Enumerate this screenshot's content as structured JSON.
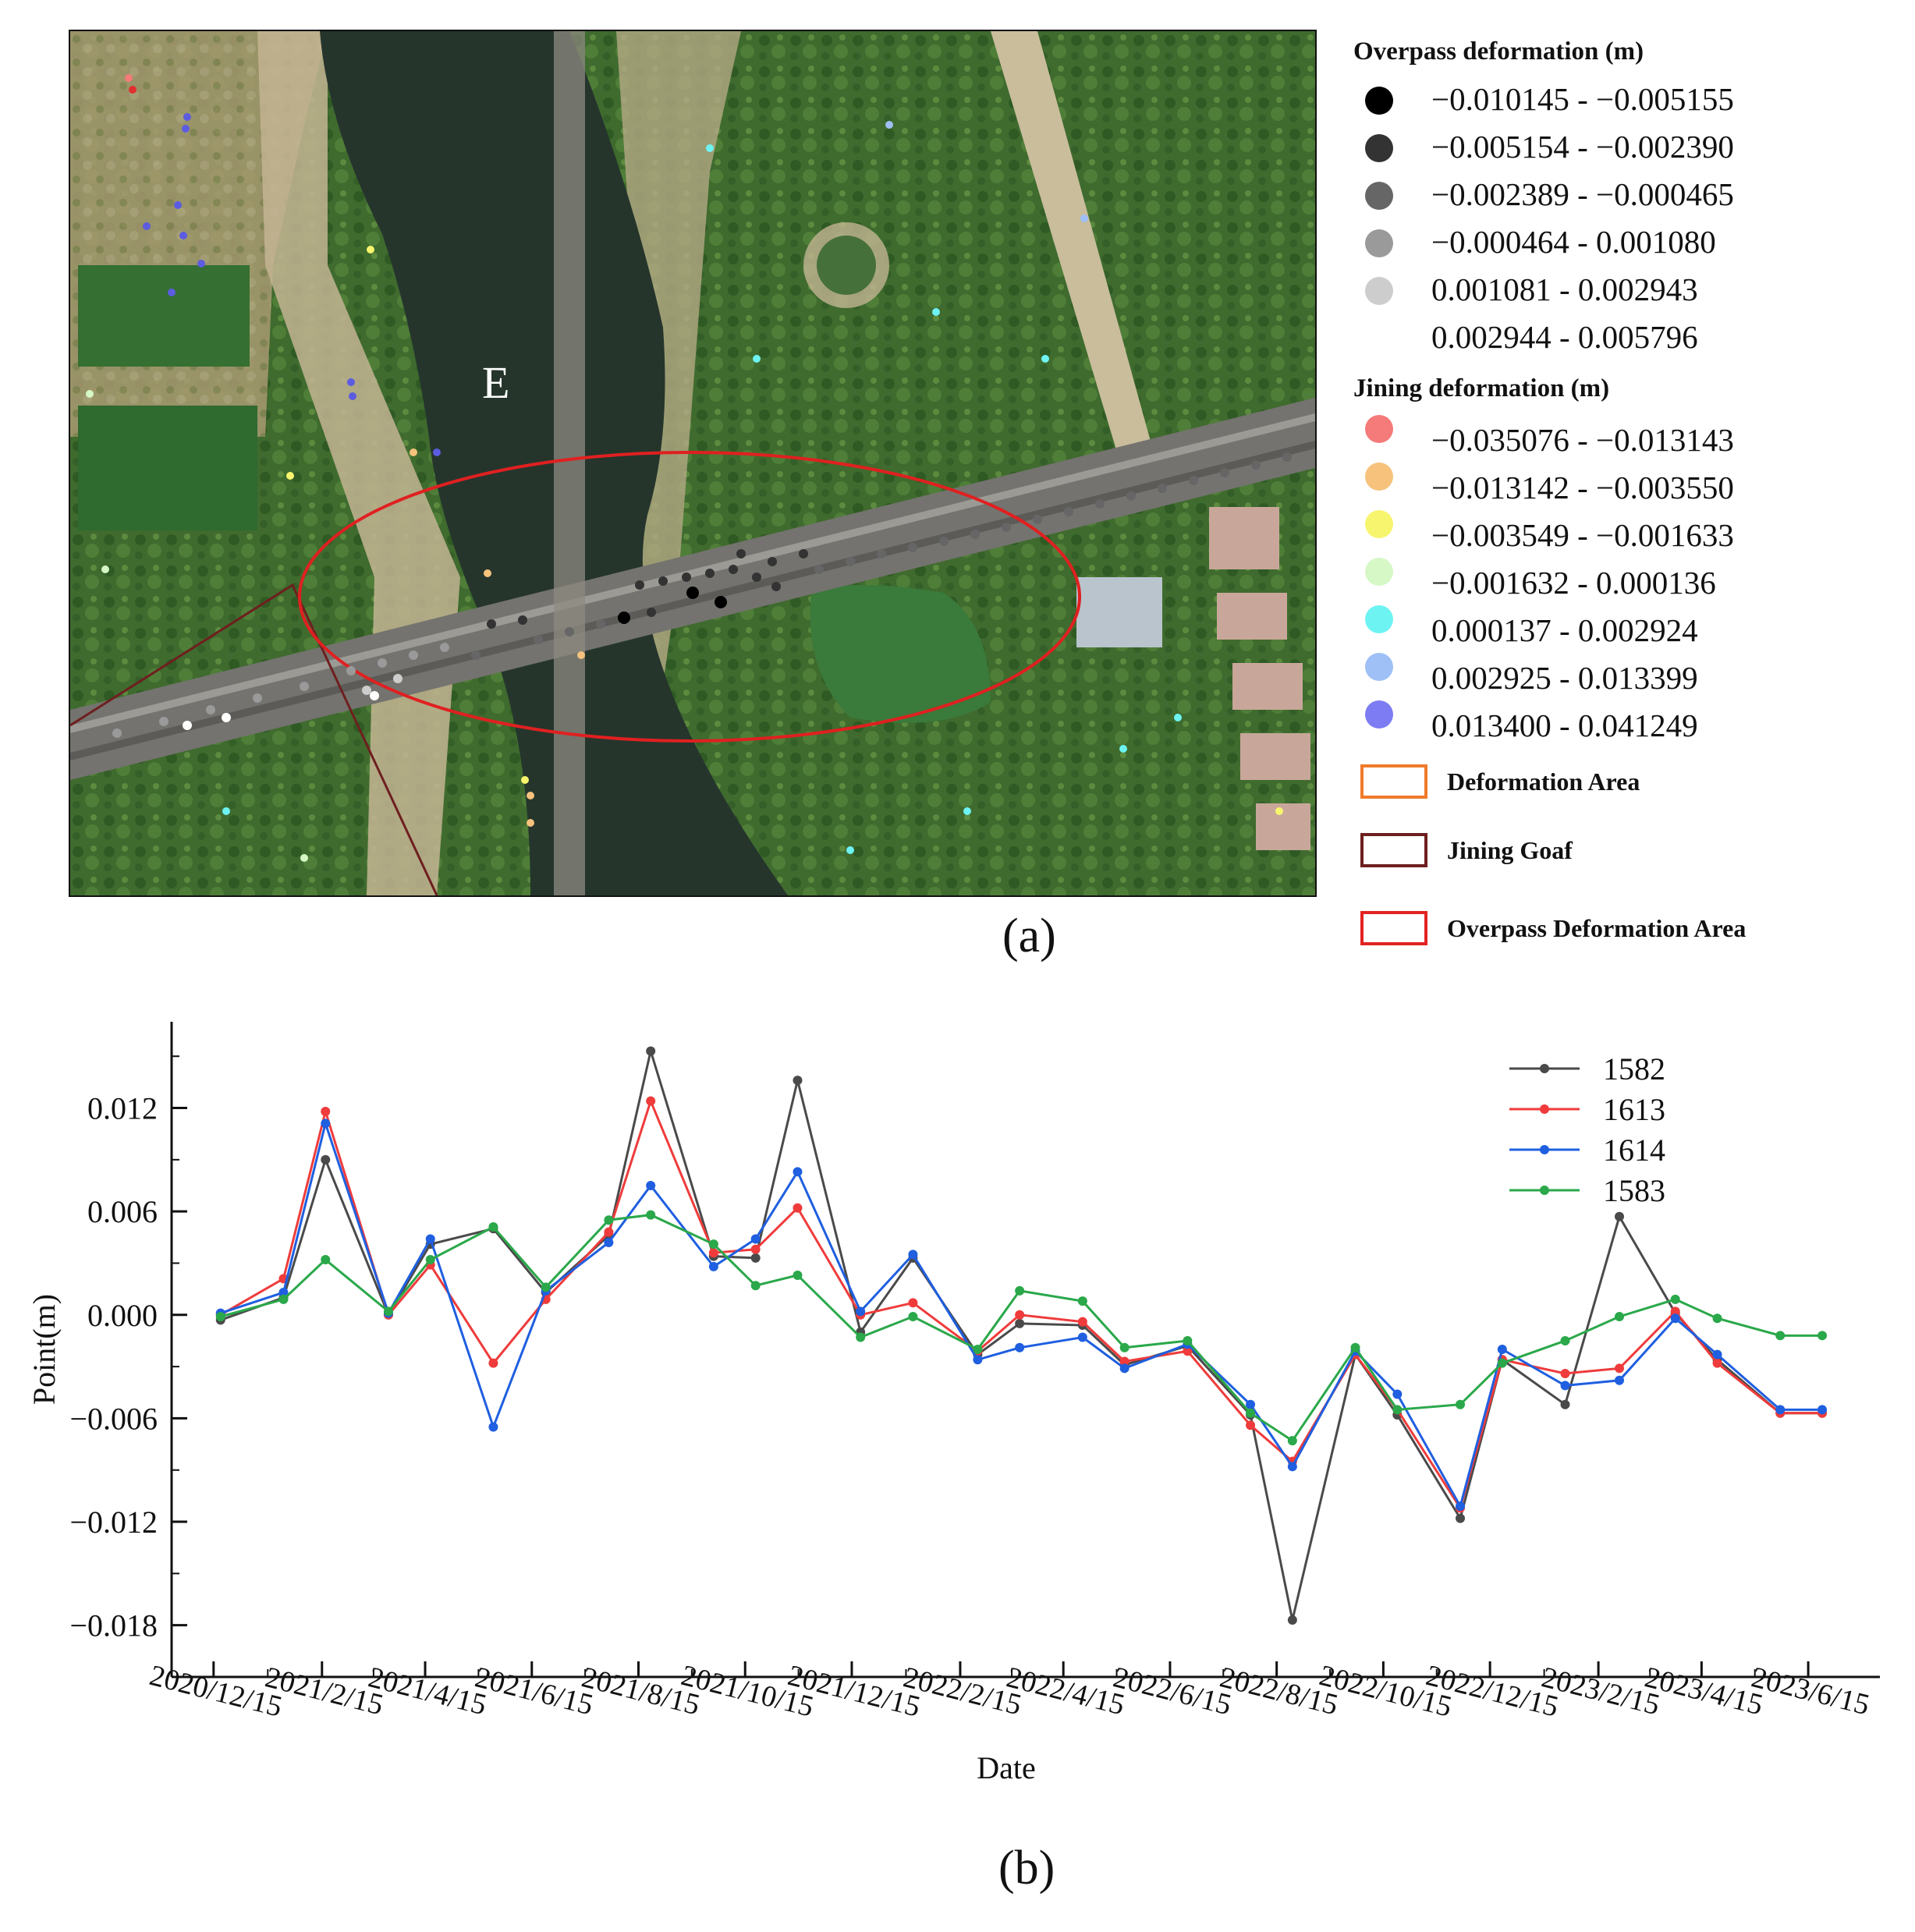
{
  "panel_a": {
    "caption": "(a)",
    "map_label": "E",
    "legend": {
      "overpass_title": "Overpass deformation (m)",
      "overpass_classes": [
        {
          "label": "−0.010145 - −0.005155",
          "color": "#000000"
        },
        {
          "label": "−0.005154 - −0.002390",
          "color": "#333333"
        },
        {
          "label": "−0.002389 - −0.000465",
          "color": "#666666"
        },
        {
          "label": "−0.000464 - 0.001080",
          "color": "#9a9a9a"
        },
        {
          "label": "0.001081 - 0.002943",
          "color": "#cdcdcd"
        },
        {
          "label": "0.002944 - 0.005796",
          "color": "#ffffff"
        }
      ],
      "jining_title": "Jining deformation (m)",
      "jining_classes": [
        {
          "label": "−0.035076 - −0.013143",
          "color": "#f57a7a"
        },
        {
          "label": "−0.013142 - −0.003550",
          "color": "#f6c27c"
        },
        {
          "label": "−0.003549 - −0.001633",
          "color": "#f7f56e"
        },
        {
          "label": "−0.001632 - 0.000136",
          "color": "#d6f7c6"
        },
        {
          "label": "0.000137 - 0.002924",
          "color": "#6ef3f3"
        },
        {
          "label": "0.002925 - 0.013399",
          "color": "#9ec0f6"
        },
        {
          "label": "0.013400 - 0.041249",
          "color": "#7d7cf3"
        }
      ],
      "areas": [
        {
          "label": "Deformation Area",
          "color": "#f07a2a"
        },
        {
          "label": "Jining Goaf",
          "color": "#6e1f1f"
        },
        {
          "label": "Overpass Deformation Area",
          "color": "#e32222"
        }
      ]
    }
  },
  "panel_b": {
    "caption": "(b)"
  },
  "chart_data": {
    "type": "line",
    "xlabel": "Date",
    "ylabel": "Point(m)",
    "ylim": [
      -0.021,
      0.017
    ],
    "yticks": [
      -0.018,
      -0.012,
      -0.006,
      0.0,
      0.006,
      0.012
    ],
    "ytick_labels": [
      "−0.018",
      "−0.012",
      "−0.006",
      "0.000",
      "0.006",
      "0.012"
    ],
    "xlim": [
      "2020-11-21",
      "2023-07-26"
    ],
    "xticks": [
      "2020-12-15",
      "2021-02-15",
      "2021-04-15",
      "2021-06-15",
      "2021-08-15",
      "2021-10-15",
      "2021-12-15",
      "2022-02-15",
      "2022-04-15",
      "2022-06-15",
      "2022-08-15",
      "2022-10-15",
      "2022-12-15",
      "2023-02-15",
      "2023-04-15",
      "2023-06-15"
    ],
    "xtick_labels": [
      "2020/12/15",
      "2021/2/15",
      "2021/4/15",
      "2021/6/15",
      "2021/8/15",
      "2021/10/15",
      "2021/12/15",
      "2022/2/15",
      "2022/4/15",
      "2022/6/15",
      "2022/8/15",
      "2022/10/15",
      "2022/12/15",
      "2023/2/15",
      "2023/4/15",
      "2023/6/15"
    ],
    "x": [
      "2020-12-19",
      "2021-01-24",
      "2021-02-17",
      "2021-03-25",
      "2021-04-18",
      "2021-05-24",
      "2021-06-23",
      "2021-07-29",
      "2021-08-22",
      "2021-09-27",
      "2021-10-21",
      "2021-11-14",
      "2021-12-20",
      "2022-01-19",
      "2022-02-25",
      "2022-03-21",
      "2022-04-26",
      "2022-05-20",
      "2022-06-25",
      "2022-07-31",
      "2022-08-24",
      "2022-09-29",
      "2022-10-23",
      "2022-11-28",
      "2022-12-22",
      "2023-01-27",
      "2023-02-27",
      "2023-03-31",
      "2023-04-24",
      "2023-05-30",
      "2023-06-23"
    ],
    "legend_position": "top-right",
    "grid": false,
    "series": [
      {
        "name": "1582",
        "color": "#4a4a4a",
        "values": [
          -0.0003,
          0.001,
          0.009,
          0.0,
          0.0041,
          0.005,
          0.0013,
          0.0046,
          0.0153,
          0.0034,
          0.0033,
          0.0136,
          -0.001,
          0.0033,
          -0.0023,
          -0.0005,
          -0.0006,
          -0.0029,
          -0.0018,
          -0.0058,
          -0.0177,
          -0.0023,
          -0.0058,
          -0.0118,
          -0.0026,
          -0.0052,
          0.0057,
          0.0001,
          -0.0026,
          -0.0057,
          -0.0057
        ]
      },
      {
        "name": "1613",
        "color": "#ef3b3b",
        "values": [
          0.0,
          0.0021,
          0.0118,
          0.0,
          0.0029,
          -0.0028,
          0.0009,
          0.0048,
          0.0124,
          0.0036,
          0.0038,
          0.0062,
          0.0,
          0.0007,
          -0.0021,
          0.0,
          -0.0004,
          -0.0027,
          -0.0021,
          -0.0064,
          -0.0085,
          -0.0023,
          -0.0055,
          -0.0112,
          -0.0026,
          -0.0034,
          -0.0031,
          0.0002,
          -0.0028,
          -0.0057,
          -0.0057
        ]
      },
      {
        "name": "1614",
        "color": "#1f5fe0",
        "values": [
          0.0001,
          0.0013,
          0.0111,
          0.0001,
          0.0044,
          -0.0065,
          0.0014,
          0.0042,
          0.0075,
          0.0028,
          0.0044,
          0.0083,
          0.0002,
          0.0035,
          -0.0026,
          -0.0019,
          -0.0013,
          -0.0031,
          -0.0017,
          -0.0052,
          -0.0088,
          -0.0021,
          -0.0046,
          -0.0111,
          -0.002,
          -0.0041,
          -0.0038,
          -0.0002,
          -0.0023,
          -0.0055,
          -0.0055
        ]
      },
      {
        "name": "1583",
        "color": "#2aa84a",
        "values": [
          -0.0001,
          0.0009,
          0.0032,
          0.0002,
          0.0032,
          0.0051,
          0.0016,
          0.0055,
          0.0058,
          0.0041,
          0.0017,
          0.0023,
          -0.0013,
          -0.0001,
          -0.002,
          0.0014,
          0.0008,
          -0.0019,
          -0.0015,
          -0.0057,
          -0.0073,
          -0.0019,
          -0.0055,
          -0.0052,
          -0.0028,
          -0.0015,
          -0.0001,
          0.0009,
          -0.0002,
          -0.0012,
          -0.0012
        ]
      }
    ]
  }
}
